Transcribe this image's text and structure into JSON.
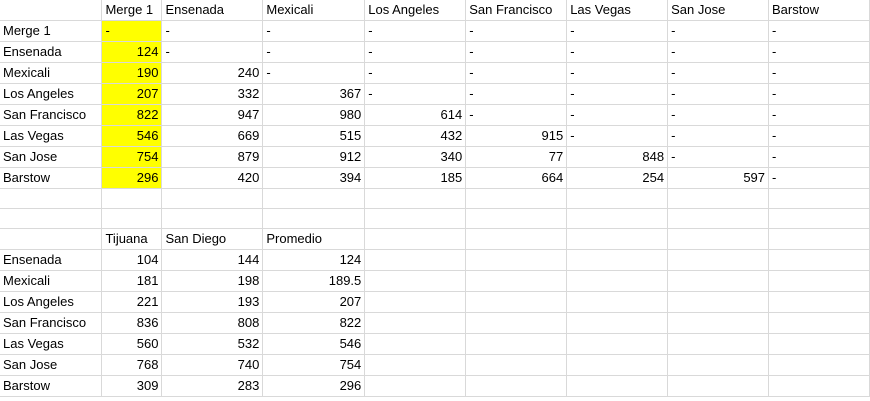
{
  "colors": {
    "highlight": "#ffff00",
    "gridline": "#d9d9d9"
  },
  "top_table": {
    "headers": [
      "",
      "Merge 1",
      "Ensenada",
      "Mexicali",
      "Los Angeles",
      "San Francisco",
      "Las Vegas",
      "San Jose",
      "Barstow"
    ],
    "rows": [
      [
        "Merge 1",
        "-",
        "-",
        "-",
        "-",
        "-",
        "-",
        "-",
        "-"
      ],
      [
        "Ensenada",
        "124",
        "-",
        "-",
        "-",
        "-",
        "-",
        "-",
        "-"
      ],
      [
        "Mexicali",
        "190",
        "240",
        "-",
        "-",
        "-",
        "-",
        "-",
        "-"
      ],
      [
        "Los Angeles",
        "207",
        "332",
        "367",
        "-",
        "-",
        "-",
        "-",
        "-"
      ],
      [
        "San Francisco",
        "822",
        "947",
        "980",
        "614",
        "-",
        "-",
        "-",
        "-"
      ],
      [
        "Las Vegas",
        "546",
        "669",
        "515",
        "432",
        "915",
        "-",
        "-",
        "-"
      ],
      [
        "San Jose",
        "754",
        "879",
        "912",
        "340",
        "77",
        "848",
        "-",
        "-"
      ],
      [
        "Barstow",
        "296",
        "420",
        "394",
        "185",
        "664",
        "254",
        "597",
        "-"
      ]
    ]
  },
  "bottom_table": {
    "headers": [
      "",
      "Tijuana",
      "San Diego",
      "Promedio"
    ],
    "rows": [
      [
        "Ensenada",
        "104",
        "144",
        "124"
      ],
      [
        "Mexicali",
        "181",
        "198",
        "189.5"
      ],
      [
        "Los Angeles",
        "221",
        "193",
        "207"
      ],
      [
        "San Francisco",
        "836",
        "808",
        "822"
      ],
      [
        "Las Vegas",
        "560",
        "532",
        "546"
      ],
      [
        "San Jose",
        "768",
        "740",
        "754"
      ],
      [
        "Barstow",
        "309",
        "283",
        "296"
      ]
    ]
  }
}
